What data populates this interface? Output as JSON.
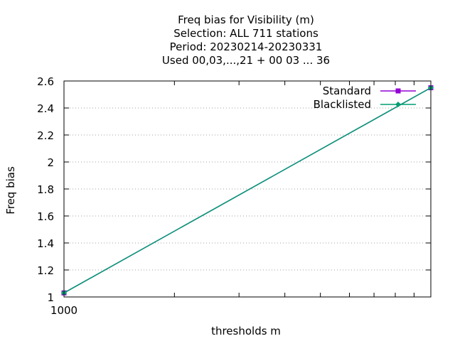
{
  "chart_data": {
    "type": "line",
    "title_lines": [
      "Freq bias  for Visibility (m)",
      "Selection: ALL    711 stations",
      "Period: 20230214-20230331",
      "Used  00,03,...,21  + 00 03 ... 36"
    ],
    "xlabel": "thresholds m",
    "ylabel": "Freq bias",
    "x_scale": "log",
    "xlim": [
      1000,
      10000
    ],
    "x_tick_labels": [
      "1000"
    ],
    "ylim": [
      1,
      2.6
    ],
    "y_ticks": [
      1,
      1.2,
      1.4,
      1.6,
      1.8,
      2,
      2.2,
      2.4,
      2.6
    ],
    "y_tick_labels": [
      "1",
      "1.2",
      "1.4",
      "1.6",
      "1.8",
      "2",
      "2.2",
      "2.4",
      "2.6"
    ],
    "grid": "horizontal dotted",
    "legend_position": "top-right",
    "series": [
      {
        "name": "Standard",
        "color": "#9400d3",
        "marker": "filled-square",
        "x": [
          1000,
          10000
        ],
        "y": [
          1.03,
          2.55
        ]
      },
      {
        "name": "Blacklisted",
        "color": "#009e73",
        "marker": "filled-diamond",
        "x": [
          1000,
          10000
        ],
        "y": [
          1.03,
          2.55
        ]
      }
    ]
  }
}
